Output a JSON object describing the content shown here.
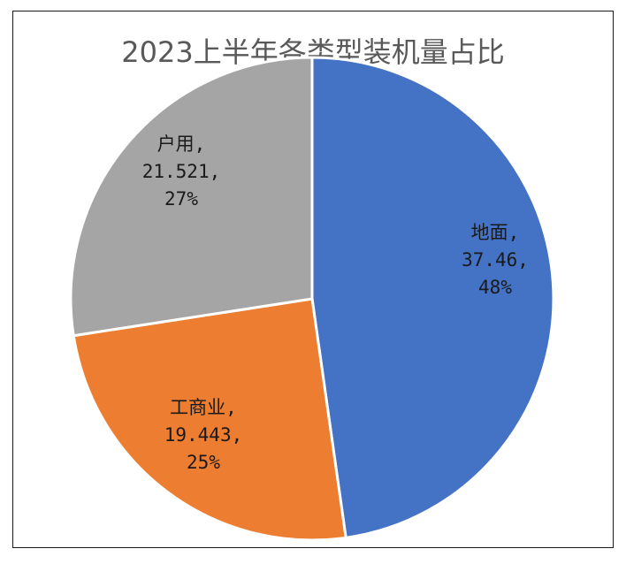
{
  "chart_data": {
    "type": "pie",
    "title": "2023上半年各类型装机量占比",
    "categories": [
      "地面",
      "工商业",
      "户用"
    ],
    "values": [
      37.46,
      19.443,
      21.521
    ],
    "percents": [
      "48%",
      "25%",
      "27%"
    ],
    "colors": [
      "#4472C4",
      "#ED7D31",
      "#A5A5A5"
    ],
    "legend": "none",
    "labels": [
      {
        "lines": [
          "地面,",
          "37.46,",
          "48%"
        ]
      },
      {
        "lines": [
          "工商业,",
          "19.443,",
          "25%"
        ]
      },
      {
        "lines": [
          "户用,",
          "21.521,",
          "27%"
        ]
      }
    ]
  }
}
